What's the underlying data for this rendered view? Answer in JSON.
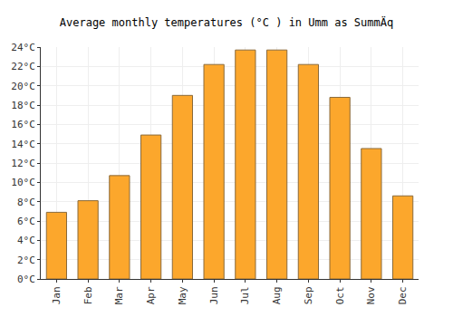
{
  "chart_data": {
    "type": "bar",
    "title": "Average monthly temperatures (°C ) in Umm as SummÄq",
    "categories": [
      "Jan",
      "Feb",
      "Mar",
      "Apr",
      "May",
      "Jun",
      "Jul",
      "Aug",
      "Sep",
      "Oct",
      "Nov",
      "Dec"
    ],
    "values": [
      6.9,
      8.1,
      10.7,
      14.9,
      19.0,
      22.2,
      23.7,
      23.7,
      22.2,
      18.8,
      13.5,
      8.6
    ],
    "color": "#fca72c",
    "ylim": [
      0,
      24
    ],
    "yticks": [
      {
        "value": 0,
        "label": "0°C"
      },
      {
        "value": 2,
        "label": "2°C"
      },
      {
        "value": 4,
        "label": "4°C"
      },
      {
        "value": 6,
        "label": "6°C"
      },
      {
        "value": 8,
        "label": "8°C"
      },
      {
        "value": 10,
        "label": "10°C"
      },
      {
        "value": 12,
        "label": "12°C"
      },
      {
        "value": 14,
        "label": "14°C"
      },
      {
        "value": 16,
        "label": "16°C"
      },
      {
        "value": 18,
        "label": "18°C"
      },
      {
        "value": 20,
        "label": "20°C"
      },
      {
        "value": 22,
        "label": "22°C"
      },
      {
        "value": 24,
        "label": "24°C"
      }
    ],
    "grid": true
  }
}
